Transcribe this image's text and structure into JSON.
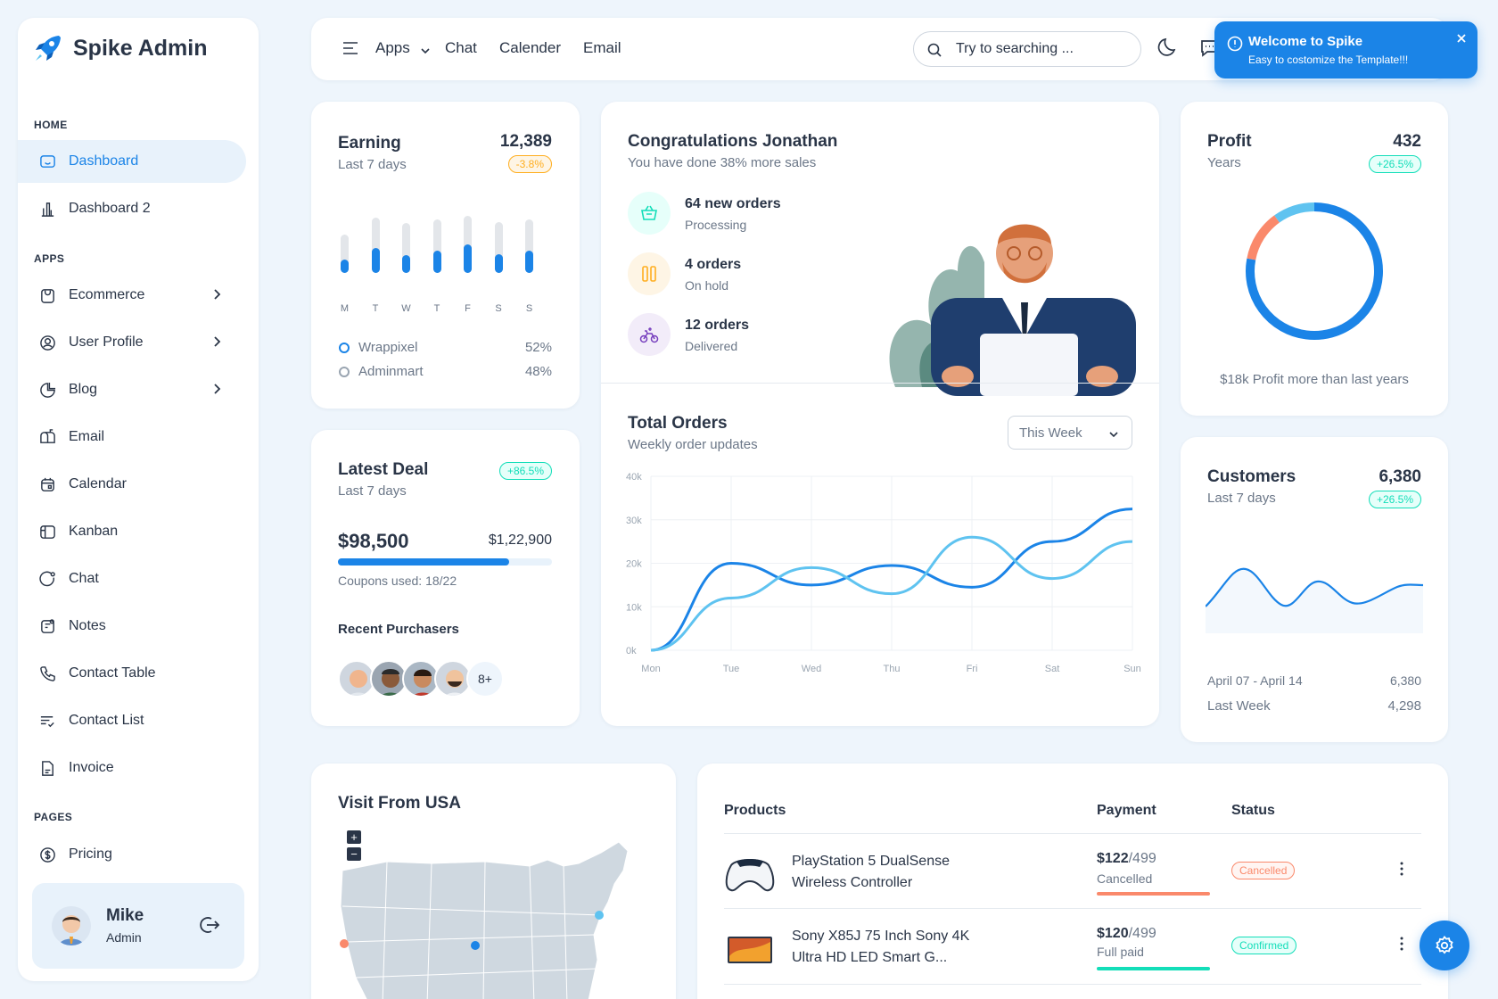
{
  "app": {
    "name": "Spike Admin",
    "accent": "#1b84e7"
  },
  "sidebar": {
    "home_label": "HOME",
    "apps_label": "APPS",
    "pages_label": "PAGES",
    "items": [
      {
        "label": "Dashboard",
        "icon": "dashboard-icon",
        "active": true
      },
      {
        "label": "Dashboard 2",
        "icon": "bar-chart-icon"
      },
      {
        "label": "Ecommerce",
        "icon": "shopping-bag-icon",
        "chevron": true
      },
      {
        "label": "User Profile",
        "icon": "user-circle-icon",
        "chevron": true
      },
      {
        "label": "Blog",
        "icon": "pie-chart-icon",
        "chevron": true
      },
      {
        "label": "Email",
        "icon": "mailbox-icon"
      },
      {
        "label": "Calendar",
        "icon": "calendar-icon"
      },
      {
        "label": "Kanban",
        "icon": "kanban-icon"
      },
      {
        "label": "Chat",
        "icon": "chat-icon"
      },
      {
        "label": "Notes",
        "icon": "notes-icon"
      },
      {
        "label": "Contact Table",
        "icon": "phone-icon"
      },
      {
        "label": "Contact List",
        "icon": "list-check-icon"
      },
      {
        "label": "Invoice",
        "icon": "invoice-icon"
      },
      {
        "label": "Pricing",
        "icon": "dollar-icon"
      }
    ],
    "user": {
      "name": "Mike",
      "role": "Admin"
    }
  },
  "header": {
    "links": [
      "Apps",
      "Chat",
      "Calender",
      "Email"
    ],
    "search_placeholder": "Try to searching ..."
  },
  "toast": {
    "title": "Welcome to Spike",
    "message": "Easy to costomize the Template!!!"
  },
  "earning": {
    "title": "Earning",
    "subtitle": "Last 7 days",
    "value": "12,389",
    "change": "-3.8%",
    "days": [
      "M",
      "T",
      "W",
      "T",
      "F",
      "S",
      "S"
    ],
    "bars": [
      {
        "total": 0.62,
        "filled": 0.22
      },
      {
        "total": 0.88,
        "filled": 0.4
      },
      {
        "total": 0.8,
        "filled": 0.28
      },
      {
        "total": 0.86,
        "filled": 0.36
      },
      {
        "total": 0.92,
        "filled": 0.46
      },
      {
        "total": 0.82,
        "filled": 0.3
      },
      {
        "total": 0.86,
        "filled": 0.36
      }
    ],
    "legend": [
      {
        "name": "Wrappixel",
        "value": "52%"
      },
      {
        "name": "Adminmart",
        "value": "48%"
      }
    ]
  },
  "congrats": {
    "title": "Congratulations Jonathan",
    "subtitle": "You have done 38% more sales",
    "items": [
      {
        "title": "64 new orders",
        "sub": "Processing",
        "icon": "basket-icon",
        "color": "#13deb9",
        "bg": "#e6fffa"
      },
      {
        "title": "4 orders",
        "sub": "On hold",
        "icon": "pause-icon",
        "color": "#ffae1f",
        "bg": "#fef5e5"
      },
      {
        "title": "12 orders",
        "sub": "Delivered",
        "icon": "bike-icon",
        "color": "#763ebd",
        "bg": "#f2ecf9"
      }
    ]
  },
  "profit": {
    "title": "Profit",
    "subtitle": "Years",
    "value": "432",
    "change": "+26.5%",
    "footer": "$18k Profit more than last years",
    "share_primary": 0.78,
    "share_secondary": 0.22
  },
  "latest_deal": {
    "title": "Latest Deal",
    "subtitle": "Last 7 days",
    "change": "+86.5%",
    "amount": "$98,500",
    "target": "$1,22,900",
    "progress": 0.8,
    "coupons": "Coupons used: 18/22",
    "recent_label": "Recent Purchasers",
    "more": "8+"
  },
  "total_orders": {
    "title": "Total Orders",
    "subtitle": "Weekly order updates",
    "filter": "This Week"
  },
  "chart_data": {
    "type": "line",
    "x": [
      "Mon",
      "Tue",
      "Wed",
      "Thu",
      "Fri",
      "Sat",
      "Sun"
    ],
    "y_ticks": [
      "40k",
      "30k",
      "20k",
      "10k",
      "0k"
    ],
    "ylim": [
      0,
      40000
    ],
    "series": [
      {
        "values": [
          0,
          20000,
          15000,
          19500,
          14500,
          25000,
          32500
        ],
        "color": "#1b84e7"
      },
      {
        "values": [
          0,
          12000,
          19000,
          13000,
          26000,
          16500,
          25000
        ],
        "color": "#5fc3f0"
      }
    ]
  },
  "customers": {
    "title": "Customers",
    "subtitle": "Last 7 days",
    "value": "6,380",
    "change": "+26.5%",
    "period": "April 07 - April 14",
    "period_value": "6,380",
    "last_week": "Last Week",
    "last_week_value": "4,298"
  },
  "visit": {
    "title": "Visit From USA",
    "zoom_in": "+",
    "zoom_out": "−"
  },
  "products": {
    "headers": [
      "Products",
      "Payment",
      "Status"
    ],
    "rows": [
      {
        "name": "PlayStation 5 DualSense Wireless Controller",
        "price": "$122",
        "total": "/499",
        "payment": "Cancelled",
        "status": "Cancelled",
        "status_color": "red",
        "bar_color": "#fa896b"
      },
      {
        "name": "Sony X85J 75 Inch Sony 4K Ultra HD LED Smart G...",
        "price": "$120",
        "total": "/499",
        "payment": "Full paid",
        "status": "Confirmed",
        "status_color": "green",
        "bar_color": "#13deb9"
      }
    ]
  }
}
